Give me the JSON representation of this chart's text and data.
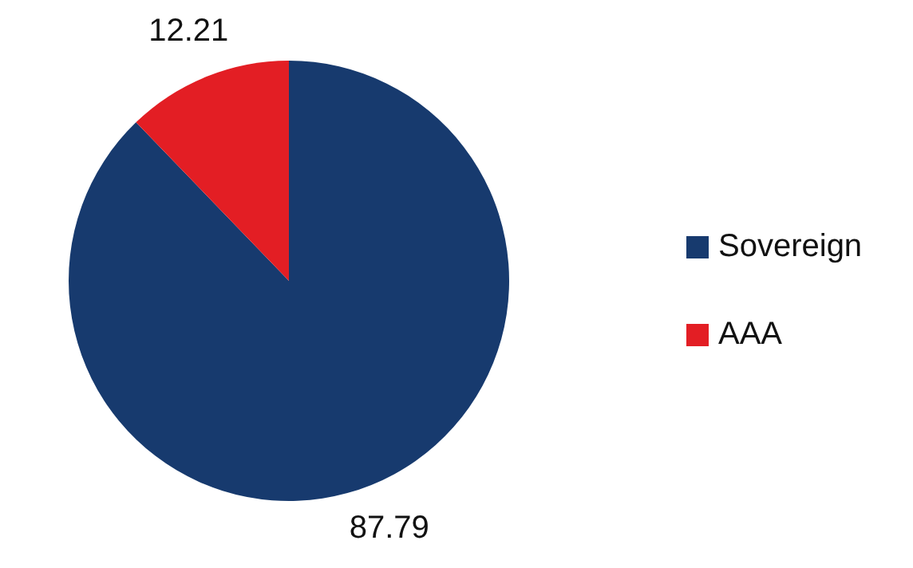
{
  "chart_data": {
    "type": "pie",
    "categories": [
      "Sovereign",
      "AAA"
    ],
    "values": [
      87.79,
      12.21
    ],
    "colors": [
      "#173a6e",
      "#e31e24"
    ],
    "data_labels": true,
    "legend": "right"
  }
}
